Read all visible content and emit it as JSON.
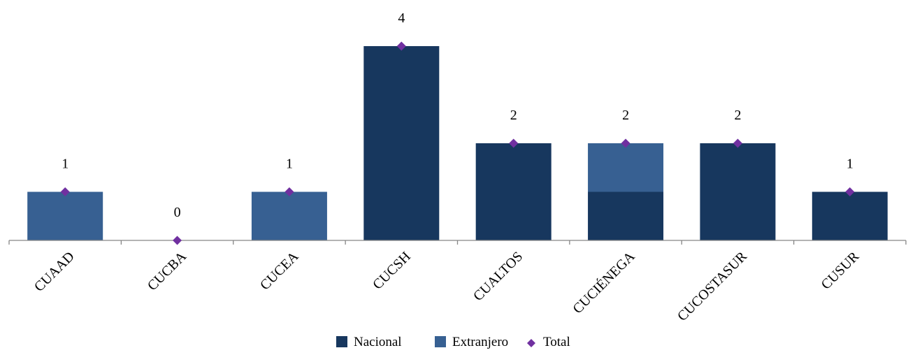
{
  "chart_data": {
    "type": "bar",
    "stacked": true,
    "categories": [
      "CUAAD",
      "CUCBA",
      "CUCEA",
      "CUCSH",
      "CUALTOS",
      "CUCIÉNEGA",
      "CUCOSTASUR",
      "CUSUR"
    ],
    "series": [
      {
        "name": "Nacional",
        "values": [
          0,
          0,
          0,
          4,
          2,
          1,
          2,
          1
        ],
        "color": "#17375e"
      },
      {
        "name": "Extranjero",
        "values": [
          1,
          0,
          1,
          0,
          0,
          1,
          0,
          0
        ],
        "color": "#376092"
      }
    ],
    "total": {
      "name": "Total",
      "values": [
        1,
        0,
        1,
        4,
        2,
        2,
        2,
        1
      ],
      "color": "#7030a0",
      "marker": "diamond"
    },
    "data_labels": [
      "1",
      "0",
      "1",
      "4",
      "2",
      "2",
      "2",
      "1"
    ],
    "ylim": [
      0,
      4
    ],
    "title": "",
    "xlabel": "",
    "ylabel": "",
    "grid": false,
    "legend_position": "bottom"
  }
}
